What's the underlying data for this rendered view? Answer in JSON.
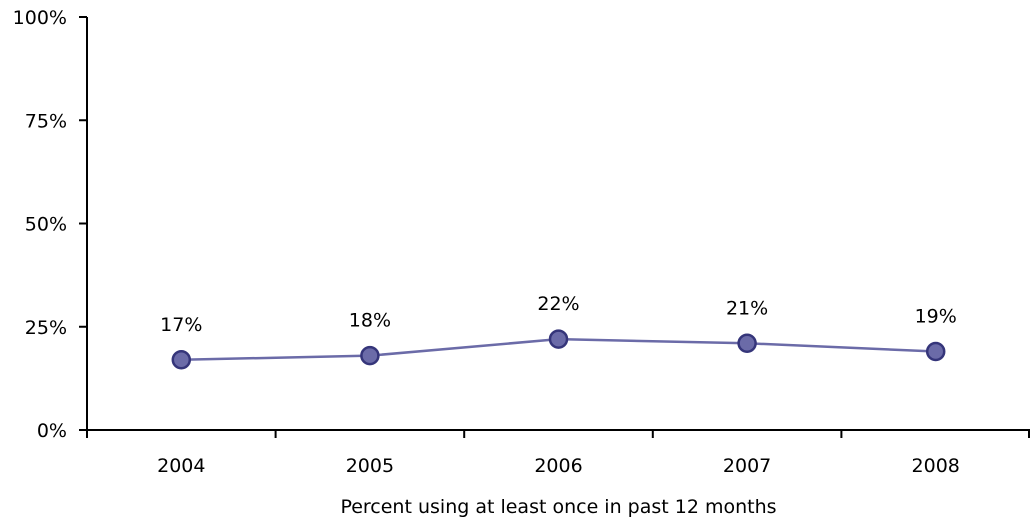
{
  "chart_data": {
    "type": "line",
    "title": "",
    "xlabel": "Percent using at least once in past 12 months",
    "ylabel": "",
    "categories": [
      "2004",
      "2005",
      "2006",
      "2007",
      "2008"
    ],
    "series": [
      {
        "values": [
          17,
          18,
          22,
          21,
          19
        ]
      }
    ],
    "data_labels": [
      "17%",
      "18%",
      "22%",
      "21%",
      "19%"
    ],
    "ylim": [
      0,
      100
    ],
    "yticks": [
      0,
      25,
      50,
      75,
      100
    ],
    "ytick_labels": [
      "0%",
      "25%",
      "50%",
      "75%",
      "100%"
    ],
    "grid": false,
    "legend": "none",
    "colors": {
      "line": "#6b6ba8",
      "marker_fill": "#6b6ba8",
      "marker_stroke": "#35357a",
      "axis": "#000000"
    }
  }
}
